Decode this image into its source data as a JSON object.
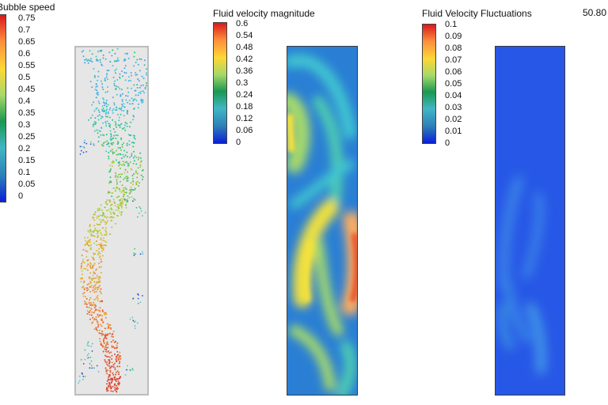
{
  "timestamp": "50.80",
  "legends": {
    "bubble": {
      "title": "Bubble speed",
      "ticks": [
        "0.75",
        "0.7",
        "0.65",
        "0.6",
        "0.55",
        "0.5",
        "0.45",
        "0.4",
        "0.35",
        "0.3",
        "0.25",
        "0.2",
        "0.15",
        "0.1",
        "0.05",
        "0"
      ]
    },
    "velocity": {
      "title": "Fluid velocity magnitude",
      "ticks": [
        "0.6",
        "0.54",
        "0.48",
        "0.42",
        "0.36",
        "0.3",
        "0.24",
        "0.18",
        "0.12",
        "0.06",
        "0"
      ]
    },
    "fluctuations": {
      "title": "Fluid Velocity Fluctuations",
      "ticks": [
        "0.1",
        "0.09",
        "0.08",
        "0.07",
        "0.06",
        "0.05",
        "0.04",
        "0.03",
        "0.02",
        "0.01",
        "0"
      ]
    }
  },
  "colors": {
    "scale": [
      "#d7191c",
      "#fd8d3c",
      "#fdd835",
      "#a6d96a",
      "#1a9850",
      "#41b6c4",
      "#2c7fb8",
      "#0a1fd6"
    ],
    "panel_border": "#3a3a3a",
    "column_bg": "#e6e6e6"
  }
}
